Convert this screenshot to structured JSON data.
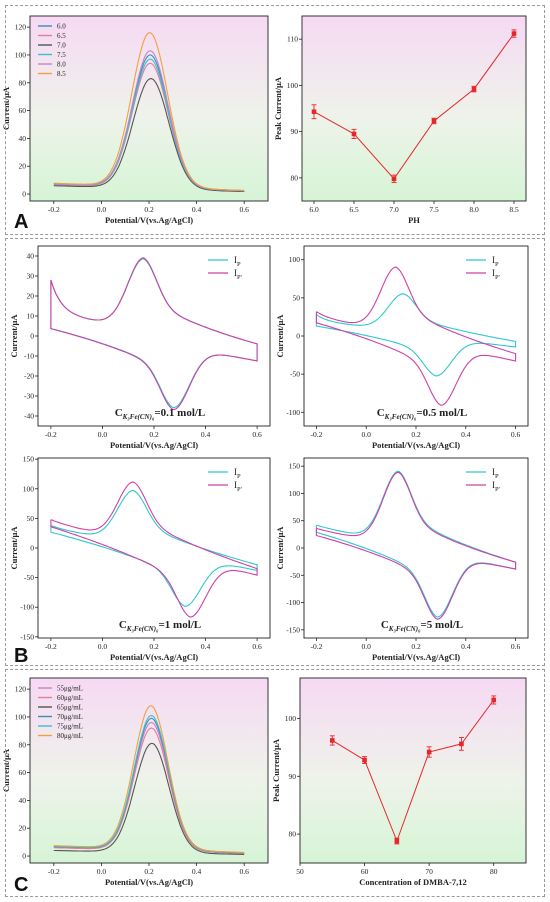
{
  "sections": [
    {
      "label": "A"
    },
    {
      "label": "B"
    },
    {
      "label": "C"
    }
  ],
  "chart_data": [
    {
      "panel": "A-left",
      "type": "line",
      "xlabel": "Potential/V(vs.Ag/AgCl)",
      "ylabel": "Current/μA",
      "xlim": [
        -0.3,
        0.7
      ],
      "ylim": [
        -5,
        128
      ],
      "xticks": [
        -0.2,
        0.0,
        0.2,
        0.4,
        0.6
      ],
      "yticks": [
        0,
        20,
        40,
        60,
        80,
        100,
        120
      ],
      "legend": "top-left",
      "background": "pink-to-green gradient",
      "series": [
        {
          "name": "6.0",
          "color": "#3a8fb7",
          "baseline": [
            7.5,
            2.5
          ],
          "peak": 100,
          "center": 0.205,
          "width": 0.075
        },
        {
          "name": "6.5",
          "color": "#e87aa0",
          "baseline": [
            6.8,
            2.2
          ],
          "peak": 94,
          "center": 0.205,
          "width": 0.075
        },
        {
          "name": "7.0",
          "color": "#555555",
          "baseline": [
            6.0,
            1.8
          ],
          "peak": 83,
          "center": 0.208,
          "width": 0.075
        },
        {
          "name": "7.5",
          "color": "#3cc0d0",
          "baseline": [
            7.0,
            2.3
          ],
          "peak": 97,
          "center": 0.205,
          "width": 0.075
        },
        {
          "name": "8.0",
          "color": "#c882c8",
          "baseline": [
            7.2,
            2.4
          ],
          "peak": 103,
          "center": 0.205,
          "width": 0.075
        },
        {
          "name": "8.5",
          "color": "#f0a040",
          "baseline": [
            7.8,
            2.6
          ],
          "peak": 116,
          "center": 0.203,
          "width": 0.075
        }
      ]
    },
    {
      "panel": "A-right",
      "type": "line",
      "xlabel": "PH",
      "ylabel": "Peak Current/μA",
      "xlim": [
        5.85,
        8.65
      ],
      "ylim": [
        75,
        115
      ],
      "xticks": [
        6.0,
        6.5,
        7.0,
        7.5,
        8.0,
        8.5
      ],
      "yticks": [
        80,
        90,
        100,
        110
      ],
      "background": "pink-to-green gradient",
      "color": "#e8262a",
      "x": [
        6.0,
        6.5,
        7.0,
        7.5,
        8.0,
        8.5
      ],
      "y": [
        94.3,
        89.5,
        79.8,
        92.3,
        99.2,
        111.2
      ],
      "yerr": [
        1.5,
        1.0,
        0.8,
        0.6,
        0.6,
        0.8
      ]
    },
    {
      "panel": "B-1",
      "type": "line",
      "annotation": "C",
      "annotation_sub": "K₃Fe(CN)₆",
      "annotation_value": "=0.1 mol/L",
      "xlabel": "Potential/V(vs.Ag/AgCl)",
      "ylabel": "Current/μA",
      "xlim": [
        -0.25,
        0.65
      ],
      "ylim": [
        -45,
        45
      ],
      "xticks": [
        -0.2,
        0.0,
        0.2,
        0.4,
        0.6
      ],
      "yticks": [
        -40,
        -30,
        -20,
        -10,
        0,
        10,
        20,
        30,
        40
      ],
      "legend": "top-right",
      "series": [
        {
          "name": "I",
          "sub": "P",
          "color": "#2ec8d0",
          "start": 11.5,
          "startTop": 28,
          "end": -7.5,
          "ipa": 40.5,
          "Epa": 0.16,
          "ipc": -37.5,
          "Epc": 0.275
        },
        {
          "name": "I",
          "sub": "P'",
          "color": "#d040a8",
          "start": 11.5,
          "startTop": 28,
          "end": -7.5,
          "ipa": 41.0,
          "Epa": 0.16,
          "ipc": -38.5,
          "Epc": 0.275
        }
      ]
    },
    {
      "panel": "B-2",
      "type": "line",
      "annotation": "C",
      "annotation_sub": "K₃Fe(CN)₆",
      "annotation_value": "=0.5 mol/L",
      "xlabel": "Potential/V(vs.Ag/AgCl)",
      "ylabel": "Current/μA",
      "xlim": [
        -0.25,
        0.65
      ],
      "ylim": [
        -118,
        118
      ],
      "xticks": [
        -0.2,
        0.0,
        0.2,
        0.4,
        0.6
      ],
      "yticks": [
        -100,
        -50,
        0,
        50,
        100
      ],
      "legend": "top-right",
      "series": [
        {
          "name": "I",
          "sub": "P",
          "color": "#2ec8d0",
          "start": 20,
          "startTop": 28,
          "end": -12,
          "ipa": 58,
          "Epa": 0.15,
          "ipc": -55,
          "Epc": 0.28
        },
        {
          "name": "I",
          "sub": "P'",
          "color": "#d040a8",
          "start": 26,
          "startTop": 32,
          "end": -31,
          "ipa": 95,
          "Epa": 0.12,
          "ipc": -95,
          "Epc": 0.3
        }
      ]
    },
    {
      "panel": "B-3",
      "type": "line",
      "annotation": "C",
      "annotation_sub": "K₃Fe(CN)₆",
      "annotation_value": "=1 mol/L",
      "xlabel": "Potential/V(vs.Ag/AgCl)",
      "ylabel": "Current/μA",
      "xlim": [
        -0.25,
        0.65
      ],
      "ylim": [
        -152,
        152
      ],
      "xticks": [
        -0.2,
        0.0,
        0.2,
        0.4,
        0.6
      ],
      "yticks": [
        -150,
        -100,
        -50,
        0,
        50,
        100,
        150
      ],
      "legend": "top-right",
      "series": [
        {
          "name": "I",
          "sub": "P",
          "color": "#2ec8d0",
          "start": 35,
          "startTop": 38,
          "end": -37,
          "ipa": 102,
          "Epa": 0.12,
          "ipc": -103,
          "Epc": 0.32
        },
        {
          "name": "I",
          "sub": "P'",
          "color": "#d040a8",
          "start": 45,
          "startTop": 48,
          "end": -45,
          "ipa": 117,
          "Epa": 0.12,
          "ipc": -122,
          "Epc": 0.34
        }
      ]
    },
    {
      "panel": "B-4",
      "type": "line",
      "annotation": "C",
      "annotation_sub": "K₃Fe(CN)₆",
      "annotation_value": "=5 mol/L",
      "xlabel": "Potential/V(vs.Ag/AgCl)",
      "ylabel": "Current/μA",
      "xlim": [
        -0.25,
        0.65
      ],
      "ylim": [
        -165,
        165
      ],
      "xticks": [
        -0.2,
        0.0,
        0.2,
        0.4,
        0.6
      ],
      "yticks": [
        -150,
        -100,
        -50,
        0,
        50,
        100,
        150
      ],
      "legend": "top-right",
      "series": [
        {
          "name": "I",
          "sub": "P",
          "color": "#2ec8d0",
          "start": 40,
          "startTop": 42,
          "end": -38,
          "ipa": 148,
          "Epa": 0.13,
          "ipc": -133,
          "Epc": 0.285
        },
        {
          "name": "I",
          "sub": "P'",
          "color": "#d040a8",
          "start": 34,
          "startTop": 36,
          "end": -38,
          "ipa": 146,
          "Epa": 0.13,
          "ipc": -137,
          "Epc": 0.285
        }
      ]
    },
    {
      "panel": "C-left",
      "type": "line",
      "xlabel": "Potential/V(vs.Ag/AgCl)",
      "ylabel": "Current/μA",
      "xlim": [
        -0.3,
        0.7
      ],
      "ylim": [
        -5,
        128
      ],
      "xticks": [
        -0.2,
        0.0,
        0.2,
        0.4,
        0.6
      ],
      "yticks": [
        0,
        20,
        40,
        60,
        80,
        100,
        120
      ],
      "legend": "top-left",
      "background": "pink-to-green gradient",
      "series": [
        {
          "name": "55μg/mL",
          "color": "#c882c8",
          "baseline": [
            6.5,
            2.2
          ],
          "peak": 96,
          "center": 0.21,
          "width": 0.072
        },
        {
          "name": "60μg/mL",
          "color": "#e87aa0",
          "baseline": [
            6.0,
            2.0
          ],
          "peak": 92,
          "center": 0.21,
          "width": 0.072
        },
        {
          "name": "65μg/mL",
          "color": "#555555",
          "baseline": [
            4.0,
            1.2
          ],
          "peak": 81,
          "center": 0.212,
          "width": 0.072
        },
        {
          "name": "70μg/mL",
          "color": "#3a8fb7",
          "baseline": [
            6.8,
            2.3
          ],
          "peak": 99,
          "center": 0.21,
          "width": 0.072
        },
        {
          "name": "75μg/mL",
          "color": "#3cc0d0",
          "baseline": [
            7.0,
            2.4
          ],
          "peak": 101,
          "center": 0.21,
          "width": 0.072
        },
        {
          "name": "80μg/mL",
          "color": "#f0a040",
          "baseline": [
            7.5,
            2.6
          ],
          "peak": 108,
          "center": 0.208,
          "width": 0.072
        }
      ]
    },
    {
      "panel": "C-right",
      "type": "line",
      "xlabel": "Concentration of DMBA-7,12",
      "ylabel": "Peak Current/μA",
      "xlim": [
        50,
        85
      ],
      "ylim": [
        75,
        107
      ],
      "xticks": [
        50,
        60,
        70,
        80
      ],
      "yticks": [
        80,
        90,
        100
      ],
      "background": "pink-to-green gradient",
      "color": "#e8262a",
      "x": [
        55,
        60,
        65,
        70,
        75,
        80
      ],
      "y": [
        96.2,
        92.8,
        78.8,
        94.2,
        95.6,
        103.2
      ],
      "yerr": [
        0.8,
        0.6,
        0.5,
        0.9,
        1.1,
        0.7
      ]
    }
  ]
}
